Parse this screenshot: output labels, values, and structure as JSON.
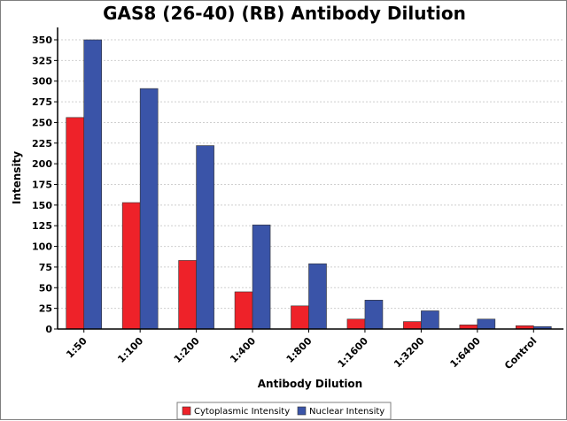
{
  "chart_data": {
    "type": "bar",
    "title": "GAS8 (26-40) (RB) Antibody Dilution",
    "xlabel": "Antibody Dilution",
    "ylabel": "Intensity",
    "categories": [
      "1:50",
      "1:100",
      "1:200",
      "1:400",
      "1:800",
      "1:1600",
      "1:3200",
      "1:6400",
      "Control"
    ],
    "series": [
      {
        "name": "Cytoplasmic Intensity",
        "color": "#ee2229",
        "values": [
          256,
          153,
          83,
          45,
          28,
          12,
          9,
          5,
          4
        ]
      },
      {
        "name": "Nuclear Intensity",
        "color": "#3a54a8",
        "values": [
          350,
          291,
          222,
          126,
          79,
          35,
          22,
          12,
          3
        ]
      }
    ],
    "ylim": [
      0,
      365
    ],
    "yticks": [
      0,
      25,
      50,
      75,
      100,
      125,
      150,
      175,
      200,
      225,
      250,
      275,
      300,
      325,
      350
    ],
    "grid": true,
    "legend": "bottom-center"
  }
}
